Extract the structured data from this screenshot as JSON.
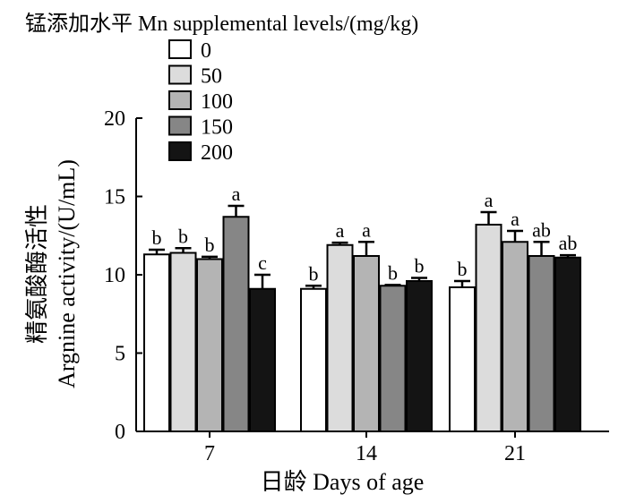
{
  "chart_data": {
    "type": "bar",
    "title": "",
    "legend_title": "锰添加水平 Mn supplemental levels/(mg/kg)",
    "xlabel": "日龄 Days of age",
    "ylabel": "精氨酸酶活性 Argnine activity/(U/mL)",
    "ylabel_cn": "精氨酸酶活性",
    "ylabel_en": "Argnine activity/(U/mL)",
    "ylim": [
      0,
      20
    ],
    "yticks": [
      0,
      5,
      10,
      15,
      20
    ],
    "categories": [
      "7",
      "14",
      "21"
    ],
    "legend_position": "top-left",
    "grid": false,
    "series": [
      {
        "name": "0",
        "color": "#ffffff",
        "values": [
          11.3,
          9.1,
          9.2
        ],
        "errors": [
          0.3,
          0.2,
          0.4
        ],
        "labels": [
          "b",
          "b",
          "b"
        ]
      },
      {
        "name": "50",
        "color": "#dcdcdc",
        "values": [
          11.4,
          11.9,
          13.2
        ],
        "errors": [
          0.3,
          0.15,
          0.8
        ],
        "labels": [
          "b",
          "a",
          "a"
        ]
      },
      {
        "name": "100",
        "color": "#b4b4b4",
        "values": [
          11.0,
          11.2,
          12.1
        ],
        "errors": [
          0.15,
          0.9,
          0.7
        ],
        "labels": [
          "b",
          "a",
          "a"
        ]
      },
      {
        "name": "150",
        "color": "#868686",
        "values": [
          13.7,
          9.3,
          11.2
        ],
        "errors": [
          0.7,
          0.05,
          0.9
        ],
        "labels": [
          "a",
          "b",
          "ab"
        ]
      },
      {
        "name": "200",
        "color": "#141414",
        "values": [
          9.1,
          9.6,
          11.1
        ],
        "errors": [
          0.9,
          0.2,
          0.15
        ],
        "labels": [
          "c",
          "b",
          "ab"
        ]
      }
    ]
  }
}
